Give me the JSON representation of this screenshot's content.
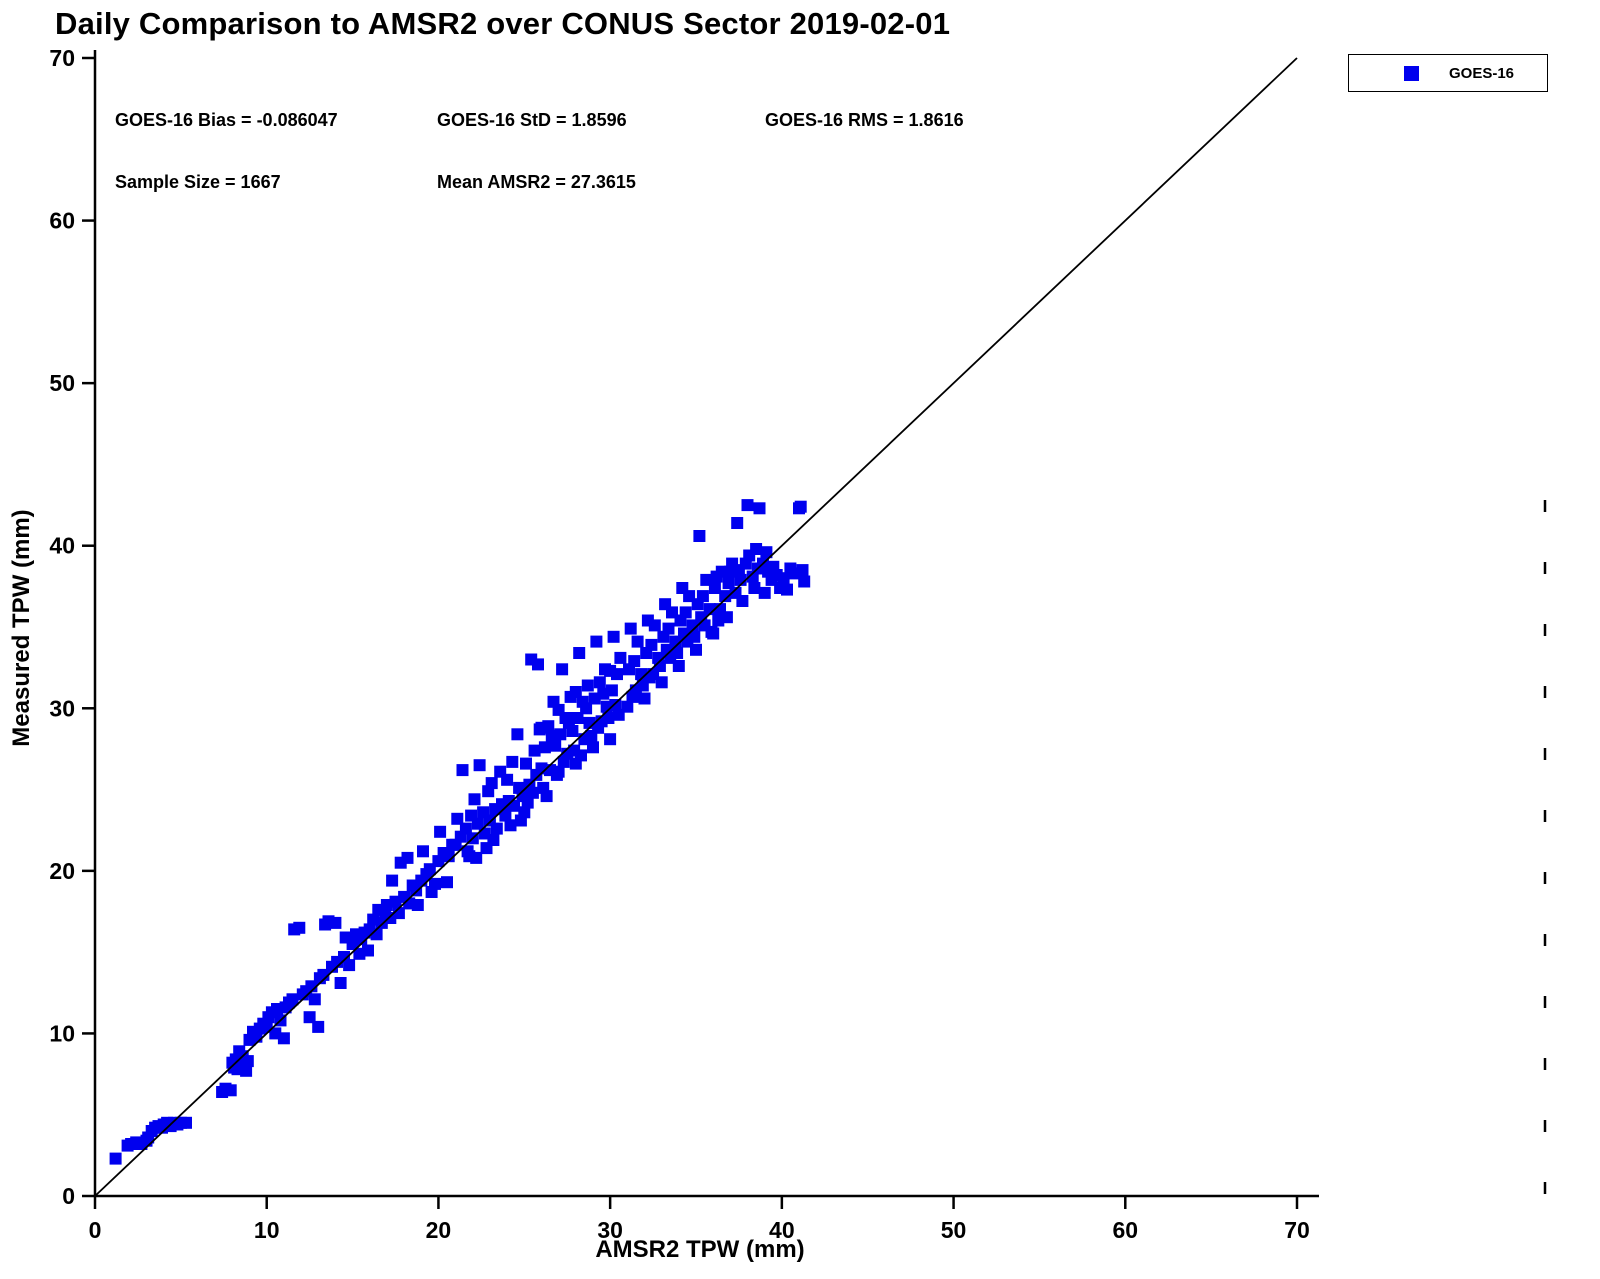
{
  "figure": {
    "title": "Daily Comparison to AMSR2 over CONUS Sector 2019-02-01",
    "stats": {
      "bias": "GOES-16 Bias = -0.086047",
      "std": "GOES-16 StD = 1.8596",
      "rms": "GOES-16 RMS = 1.8616",
      "sample_size": "Sample Size = 1667",
      "mean_amsr2": "Mean AMSR2 = 27.3615"
    },
    "legend": {
      "items": [
        {
          "label": "GOES-16",
          "marker": "square",
          "color": "#0000EE"
        }
      ]
    }
  },
  "chart_data": {
    "type": "scatter",
    "title": "Daily Comparison to AMSR2 over CONUS Sector 2019-02-01",
    "xlabel": "AMSR2 TPW (mm)",
    "ylabel": "Measured TPW (mm)",
    "xlim": [
      0,
      70
    ],
    "ylim": [
      0,
      70
    ],
    "x_ticks": [
      0,
      10,
      20,
      30,
      40,
      50,
      60,
      70
    ],
    "y_ticks": [
      0,
      10,
      20,
      30,
      40,
      50,
      60,
      70
    ],
    "grid": false,
    "legend_position": "top-right",
    "marker_color": "#0000EE",
    "marker_size_px": 12,
    "reference_line": {
      "type": "identity",
      "from": [
        0,
        0
      ],
      "to": [
        70,
        70
      ],
      "color": "#000000"
    },
    "annotations": [
      "GOES-16 Bias = -0.086047",
      "GOES-16 StD = 1.8596",
      "GOES-16 RMS = 1.8616",
      "Sample Size = 1667",
      "Mean AMSR2 = 27.3615"
    ],
    "series": [
      {
        "name": "GOES-16",
        "marker": "square",
        "color": "#0000EE",
        "sample_size": 1667,
        "points": [
          [
            1.2,
            2.3
          ],
          [
            1.9,
            3.1
          ],
          [
            2.1,
            3.2
          ],
          [
            2.4,
            3.3
          ],
          [
            2.7,
            3.2
          ],
          [
            3.0,
            3.4
          ],
          [
            3.1,
            3.6
          ],
          [
            3.3,
            4.0
          ],
          [
            3.5,
            4.2
          ],
          [
            3.7,
            4.3
          ],
          [
            3.9,
            4.2
          ],
          [
            4.0,
            4.4
          ],
          [
            4.2,
            4.5
          ],
          [
            4.4,
            4.3
          ],
          [
            4.6,
            4.5
          ],
          [
            4.8,
            4.4
          ],
          [
            5.0,
            4.5
          ],
          [
            5.3,
            4.5
          ],
          [
            7.4,
            6.4
          ],
          [
            7.6,
            6.6
          ],
          [
            7.9,
            6.5
          ],
          [
            8.0,
            8.2
          ],
          [
            8.2,
            8.4
          ],
          [
            8.3,
            7.8
          ],
          [
            8.5,
            8.0
          ],
          [
            8.6,
            8.6
          ],
          [
            8.8,
            7.7
          ],
          [
            8.9,
            8.3
          ],
          [
            8.4,
            8.9
          ],
          [
            8.1,
            7.9
          ],
          [
            9.0,
            9.6
          ],
          [
            9.2,
            10.1
          ],
          [
            9.4,
            9.8
          ],
          [
            9.6,
            10.3
          ],
          [
            9.8,
            10.6
          ],
          [
            10.0,
            10.4
          ],
          [
            10.1,
            11.0
          ],
          [
            10.3,
            11.3
          ],
          [
            10.5,
            10.0
          ],
          [
            10.6,
            11.5
          ],
          [
            10.8,
            10.8
          ],
          [
            11.0,
            9.7
          ],
          [
            11.1,
            11.6
          ],
          [
            11.3,
            11.9
          ],
          [
            11.5,
            12.1
          ],
          [
            11.6,
            16.4
          ],
          [
            11.9,
            16.5
          ],
          [
            12.1,
            12.4
          ],
          [
            12.3,
            12.6
          ],
          [
            12.5,
            11.0
          ],
          [
            12.6,
            12.9
          ],
          [
            12.8,
            12.1
          ],
          [
            13.0,
            10.4
          ],
          [
            13.1,
            13.4
          ],
          [
            13.3,
            13.6
          ],
          [
            13.4,
            16.7
          ],
          [
            13.6,
            16.9
          ],
          [
            13.8,
            14.1
          ],
          [
            14.0,
            16.8
          ],
          [
            14.1,
            14.4
          ],
          [
            14.3,
            13.1
          ],
          [
            14.5,
            14.7
          ],
          [
            14.6,
            15.9
          ],
          [
            14.8,
            14.2
          ],
          [
            15.0,
            15.5
          ],
          [
            15.2,
            16.1
          ],
          [
            15.4,
            14.9
          ],
          [
            15.5,
            15.8
          ],
          [
            15.7,
            16.2
          ],
          [
            15.9,
            15.1
          ],
          [
            16.0,
            16.4
          ],
          [
            16.2,
            17.0
          ],
          [
            16.4,
            16.1
          ],
          [
            16.5,
            17.6
          ],
          [
            16.7,
            16.8
          ],
          [
            16.9,
            17.3
          ],
          [
            17.0,
            17.9
          ],
          [
            17.2,
            17.1
          ],
          [
            17.3,
            19.4
          ],
          [
            17.5,
            18.1
          ],
          [
            17.7,
            17.4
          ],
          [
            17.8,
            20.5
          ],
          [
            18.0,
            18.4
          ],
          [
            18.2,
            20.8
          ],
          [
            18.3,
            18.0
          ],
          [
            18.5,
            19.1
          ],
          [
            18.7,
            18.8
          ],
          [
            18.8,
            17.9
          ],
          [
            19.0,
            19.4
          ],
          [
            19.1,
            21.2
          ],
          [
            19.3,
            19.8
          ],
          [
            19.5,
            20.1
          ],
          [
            19.6,
            18.7
          ],
          [
            19.8,
            19.2
          ],
          [
            20.0,
            20.6
          ],
          [
            20.1,
            22.4
          ],
          [
            20.3,
            21.1
          ],
          [
            20.5,
            19.3
          ],
          [
            20.6,
            20.9
          ],
          [
            20.8,
            21.6
          ],
          [
            21.0,
            21.6
          ],
          [
            21.1,
            23.2
          ],
          [
            21.3,
            22.1
          ],
          [
            21.4,
            26.2
          ],
          [
            21.6,
            22.6
          ],
          [
            21.7,
            21.2
          ],
          [
            21.9,
            23.4
          ],
          [
            22.0,
            22.0
          ],
          [
            22.1,
            24.4
          ],
          [
            22.3,
            22.9
          ],
          [
            22.4,
            26.5
          ],
          [
            22.6,
            23.6
          ],
          [
            22.7,
            22.3
          ],
          [
            22.9,
            24.9
          ],
          [
            23.0,
            23.1
          ],
          [
            23.1,
            25.4
          ],
          [
            23.3,
            23.8
          ],
          [
            23.4,
            22.6
          ],
          [
            23.6,
            26.1
          ],
          [
            23.7,
            24.1
          ],
          [
            23.9,
            23.4
          ],
          [
            24.0,
            25.6
          ],
          [
            24.1,
            24.3
          ],
          [
            24.3,
            26.7
          ],
          [
            24.4,
            24.0
          ],
          [
            24.6,
            28.4
          ],
          [
            24.7,
            25.1
          ],
          [
            24.9,
            24.6
          ],
          [
            25.0,
            23.6
          ],
          [
            25.1,
            26.6
          ],
          [
            25.3,
            25.3
          ],
          [
            25.4,
            33.0
          ],
          [
            25.6,
            27.4
          ],
          [
            25.7,
            25.9
          ],
          [
            25.9,
            28.7
          ],
          [
            26.0,
            26.3
          ],
          [
            25.2,
            24.2
          ],
          [
            24.8,
            23.1
          ],
          [
            23.2,
            21.9
          ],
          [
            22.8,
            21.4
          ],
          [
            21.8,
            20.9
          ],
          [
            24.2,
            22.8
          ],
          [
            25.8,
            32.7
          ],
          [
            25.5,
            24.8
          ],
          [
            22.2,
            20.8
          ],
          [
            26.1,
            25.1
          ],
          [
            26.2,
            27.6
          ],
          [
            26.4,
            28.9
          ],
          [
            26.5,
            26.2
          ],
          [
            26.7,
            30.4
          ],
          [
            26.8,
            27.7
          ],
          [
            27.0,
            26.1
          ],
          [
            27.1,
            28.4
          ],
          [
            27.2,
            32.4
          ],
          [
            27.4,
            29.4
          ],
          [
            27.5,
            27.2
          ],
          [
            27.7,
            30.7
          ],
          [
            27.8,
            28.6
          ],
          [
            28.0,
            26.6
          ],
          [
            28.1,
            29.4
          ],
          [
            28.2,
            33.4
          ],
          [
            28.4,
            30.4
          ],
          [
            28.5,
            28.1
          ],
          [
            28.7,
            31.4
          ],
          [
            28.8,
            29.1
          ],
          [
            29.0,
            27.6
          ],
          [
            29.1,
            30.6
          ],
          [
            29.2,
            34.1
          ],
          [
            29.4,
            31.6
          ],
          [
            29.5,
            29.2
          ],
          [
            29.7,
            32.4
          ],
          [
            29.8,
            30.1
          ],
          [
            30.0,
            28.1
          ],
          [
            30.1,
            31.1
          ],
          [
            30.2,
            34.4
          ],
          [
            30.4,
            32.1
          ],
          [
            30.5,
            29.6
          ],
          [
            30.6,
            33.1
          ],
          [
            26.3,
            24.6
          ],
          [
            26.9,
            25.9
          ],
          [
            27.3,
            26.7
          ],
          [
            27.9,
            27.4
          ],
          [
            28.3,
            27.1
          ],
          [
            28.9,
            28.3
          ],
          [
            29.3,
            28.8
          ],
          [
            29.9,
            29.4
          ],
          [
            30.3,
            30.2
          ],
          [
            26.6,
            28.3
          ],
          [
            27.6,
            29.1
          ],
          [
            28.6,
            30.0
          ],
          [
            29.6,
            30.9
          ],
          [
            30.0,
            32.3
          ],
          [
            28.0,
            31.0
          ],
          [
            27.0,
            29.9
          ],
          [
            26.0,
            28.8
          ],
          [
            31.0,
            30.1
          ],
          [
            31.1,
            32.4
          ],
          [
            31.2,
            34.9
          ],
          [
            31.4,
            32.9
          ],
          [
            31.5,
            31.1
          ],
          [
            31.6,
            34.1
          ],
          [
            31.8,
            32.1
          ],
          [
            32.0,
            30.6
          ],
          [
            32.1,
            33.4
          ],
          [
            32.2,
            35.4
          ],
          [
            32.4,
            33.9
          ],
          [
            32.5,
            32.1
          ],
          [
            32.6,
            35.1
          ],
          [
            32.8,
            33.1
          ],
          [
            33.0,
            31.6
          ],
          [
            33.1,
            34.4
          ],
          [
            33.2,
            36.4
          ],
          [
            33.4,
            34.9
          ],
          [
            33.5,
            33.1
          ],
          [
            33.6,
            35.9
          ],
          [
            33.8,
            34.1
          ],
          [
            34.0,
            32.6
          ],
          [
            34.1,
            35.4
          ],
          [
            34.2,
            37.4
          ],
          [
            34.4,
            35.9
          ],
          [
            34.5,
            34.1
          ],
          [
            34.6,
            36.9
          ],
          [
            34.8,
            35.1
          ],
          [
            35.0,
            33.6
          ],
          [
            35.1,
            36.4
          ],
          [
            35.2,
            40.6
          ],
          [
            35.4,
            36.9
          ],
          [
            35.5,
            35.1
          ],
          [
            35.6,
            37.9
          ],
          [
            31.3,
            30.7
          ],
          [
            31.9,
            31.4
          ],
          [
            32.3,
            31.9
          ],
          [
            32.9,
            32.6
          ],
          [
            33.3,
            33.6
          ],
          [
            33.9,
            33.4
          ],
          [
            34.3,
            34.6
          ],
          [
            34.9,
            34.4
          ],
          [
            35.3,
            35.6
          ],
          [
            35.8,
            36.1
          ],
          [
            35.9,
            34.7
          ],
          [
            36.0,
            34.6
          ],
          [
            36.1,
            37.4
          ],
          [
            36.2,
            38.1
          ],
          [
            36.4,
            36.1
          ],
          [
            36.5,
            38.4
          ],
          [
            36.7,
            36.9
          ],
          [
            36.8,
            35.6
          ],
          [
            37.0,
            38.4
          ],
          [
            37.1,
            38.9
          ],
          [
            37.3,
            37.1
          ],
          [
            37.4,
            41.4
          ],
          [
            37.6,
            37.9
          ],
          [
            37.7,
            36.6
          ],
          [
            37.9,
            38.9
          ],
          [
            38.0,
            42.5
          ],
          [
            38.1,
            39.4
          ],
          [
            38.3,
            38.1
          ],
          [
            38.4,
            37.4
          ],
          [
            38.6,
            38.6
          ],
          [
            38.7,
            42.3
          ],
          [
            38.9,
            38.9
          ],
          [
            39.0,
            37.1
          ],
          [
            39.2,
            38.4
          ],
          [
            39.4,
            37.9
          ],
          [
            39.5,
            38.7
          ],
          [
            39.7,
            38.2
          ],
          [
            39.9,
            37.4
          ],
          [
            40.1,
            38.0
          ],
          [
            40.3,
            37.3
          ],
          [
            40.5,
            38.6
          ],
          [
            40.7,
            38.3
          ],
          [
            41.0,
            42.3
          ],
          [
            41.1,
            42.4
          ],
          [
            41.2,
            38.5
          ],
          [
            41.3,
            37.8
          ],
          [
            36.3,
            35.4
          ],
          [
            36.9,
            37.7
          ],
          [
            37.5,
            38.5
          ],
          [
            38.5,
            39.8
          ],
          [
            39.1,
            39.6
          ]
        ]
      }
    ]
  }
}
